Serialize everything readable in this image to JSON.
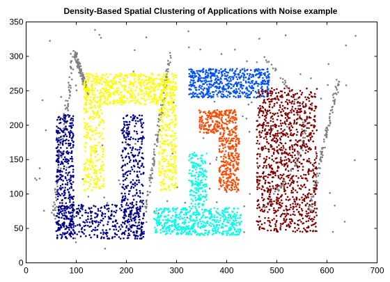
{
  "chart_data": {
    "type": "scatter",
    "title": "Density-Based Spatial Clustering of Applications with Noise example",
    "xlabel": "",
    "ylabel": "",
    "xlim": [
      0,
      700
    ],
    "ylim": [
      0,
      350
    ],
    "xticks": [
      0,
      100,
      200,
      300,
      400,
      500,
      600,
      700
    ],
    "yticks": [
      0,
      50,
      100,
      150,
      200,
      250,
      300,
      350
    ],
    "grid": false,
    "legend": "none",
    "marker_size_pt": 2,
    "series": [
      {
        "color": "#00008b",
        "regions": [
          [
            60,
            95,
            35,
            215
          ],
          [
            60,
            235,
            35,
            85
          ],
          [
            190,
            235,
            35,
            215
          ]
        ],
        "points_per_region": [
          380,
          320,
          340
        ]
      },
      {
        "color": "#ffff00",
        "regions": [
          [
            115,
            300,
            230,
            275
          ],
          [
            115,
            155,
            105,
            230
          ],
          [
            265,
            300,
            105,
            230
          ]
        ],
        "points_per_region": [
          620,
          230,
          230
        ]
      },
      {
        "color": "#00ffe6",
        "regions": [
          [
            255,
            430,
            40,
            80
          ],
          [
            325,
            360,
            80,
            160
          ]
        ],
        "points_per_region": [
          520,
          180
        ]
      },
      {
        "color": "#0050ff",
        "regions": [
          [
            325,
            485,
            240,
            282
          ]
        ],
        "points_per_region": [
          560
        ]
      },
      {
        "color": "#ff4800",
        "regions": [
          [
            345,
            420,
            188,
            222
          ],
          [
            385,
            425,
            105,
            188
          ]
        ],
        "points_per_region": [
          220,
          260
        ]
      },
      {
        "color": "#800000",
        "regions": [
          [
            460,
            580,
            45,
            255
          ]
        ],
        "points_per_region": [
          1050
        ]
      },
      {
        "color": "#808080",
        "role": "noise",
        "points_per_region": [
          650
        ]
      }
    ]
  }
}
